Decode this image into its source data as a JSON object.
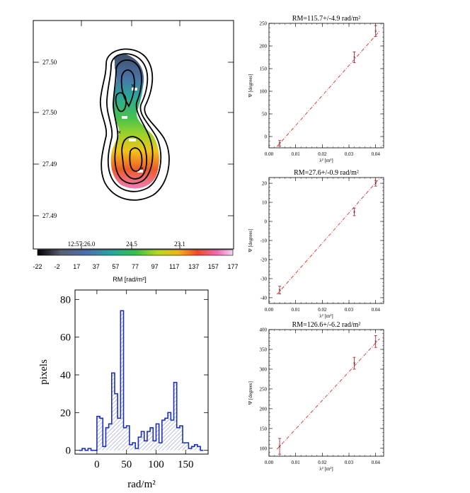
{
  "colors": {
    "axis": "#000000",
    "fit_line": "#d9322b",
    "data_point": "#a0142a",
    "hist_line": "#1a2fbf",
    "hist_hatch": "#5566cc",
    "contour": "#000000"
  },
  "chart_data": [
    {
      "id": "rm_map",
      "type": "heatmap",
      "ytick_labels": [
        "27.50",
        "27.50",
        "27.49",
        "27.49"
      ],
      "xtick_labels": [
        "12:57:26.0",
        "24.5",
        "23.1"
      ],
      "colorbar": {
        "tick_labels": [
          "-22",
          "-2",
          "17",
          "37",
          "57",
          "77",
          "97",
          "117",
          "137",
          "157",
          "177"
        ],
        "label": "RM  [rad/m²]",
        "range": [
          -22,
          177
        ]
      },
      "markers": [
        "×",
        "×",
        "×"
      ]
    },
    {
      "id": "rm_histogram",
      "type": "bar",
      "xlabel": "rad/m²",
      "ylabel": "pixels",
      "xlim": [
        -37,
        188
      ],
      "ylim": [
        -2,
        85
      ],
      "xticks": [
        "0",
        "50",
        "100",
        "150"
      ],
      "yticks": [
        "0",
        "20",
        "40",
        "60",
        "80"
      ],
      "bin_width": 5,
      "bin_start": -30,
      "values": [
        0,
        1,
        0,
        1,
        0,
        0,
        18,
        17,
        2,
        12,
        14,
        41,
        30,
        17,
        74,
        12,
        13,
        3,
        4,
        1,
        7,
        10,
        5,
        10,
        12,
        5,
        14,
        4,
        16,
        17,
        20,
        16,
        36,
        12,
        13,
        4,
        4,
        1,
        2,
        3,
        2,
        0
      ]
    },
    {
      "id": "panel_1",
      "type": "scatter",
      "title": "RM=115.7+/-4.9 rad/m²",
      "xlabel": "λ² [m²]",
      "ylabel": "Ψ [degrees]",
      "xlim": [
        0.0,
        0.043
      ],
      "ylim": [
        -25,
        250
      ],
      "xticks": [
        "0.00",
        "0.01",
        "0.02",
        "0.03",
        "0.04"
      ],
      "yticks": [
        "0",
        "50",
        "100",
        "150",
        "200",
        "250"
      ],
      "points": [
        {
          "x": 0.004,
          "y": -15,
          "err": 6
        },
        {
          "x": 0.032,
          "y": 175,
          "err": 12
        },
        {
          "x": 0.04,
          "y": 233,
          "err": 12
        }
      ],
      "fit": {
        "slope": 6630,
        "intercept": -42
      }
    },
    {
      "id": "panel_2",
      "type": "scatter",
      "title": "RM=27.6+/-0.9 rad/m²",
      "xlabel": "λ² [m²]",
      "ylabel": "Ψ [degrees]",
      "xlim": [
        0.0,
        0.043
      ],
      "ylim": [
        -43,
        23
      ],
      "xticks": [
        "0.00",
        "0.01",
        "0.02",
        "0.03",
        "0.04"
      ],
      "yticks": [
        "-40",
        "-30",
        "-20",
        "-10",
        "0",
        "10",
        "20"
      ],
      "points": [
        {
          "x": 0.004,
          "y": -36,
          "err": 2
        },
        {
          "x": 0.032,
          "y": 5,
          "err": 2
        },
        {
          "x": 0.04,
          "y": 20,
          "err": 1.5
        }
      ],
      "fit": {
        "slope": 1582,
        "intercept": -43
      }
    },
    {
      "id": "panel_3",
      "type": "scatter",
      "title": "RM=126.6+/-6.2 rad/m²",
      "xlabel": "λ² [m²]",
      "ylabel": "Ψ [degrees]",
      "xlim": [
        0.0,
        0.043
      ],
      "ylim": [
        80,
        400
      ],
      "xticks": [
        "0.00",
        "0.01",
        "0.02",
        "0.03",
        "0.04"
      ],
      "yticks": [
        "100",
        "150",
        "200",
        "250",
        "300",
        "350",
        "400"
      ],
      "points": [
        {
          "x": 0.004,
          "y": 105,
          "err": 20
        },
        {
          "x": 0.032,
          "y": 315,
          "err": 15
        },
        {
          "x": 0.04,
          "y": 370,
          "err": 15
        }
      ],
      "fit": {
        "slope": 7253,
        "intercept": 76
      }
    }
  ]
}
